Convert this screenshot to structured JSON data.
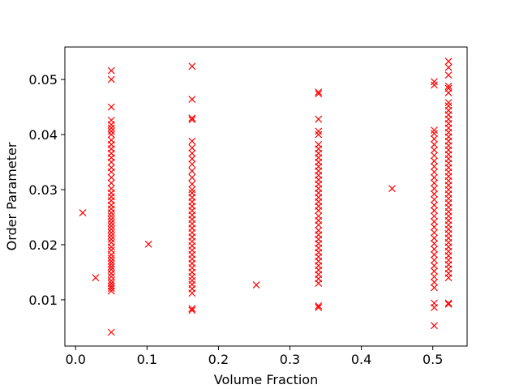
{
  "chart_data": {
    "type": "scatter",
    "title": "",
    "xlabel": "Volume Fraction",
    "ylabel": "Order Parameter",
    "xlim": [
      -0.015,
      0.548
    ],
    "ylim": [
      0.0016,
      0.0559
    ],
    "xticks": [
      0,
      0.1,
      0.2,
      0.3,
      0.4,
      0.5
    ],
    "xtick_labels": [
      "0.0",
      "0.1",
      "0.2",
      "0.3",
      "0.4",
      "0.5"
    ],
    "yticks": [
      0.01,
      0.02,
      0.03,
      0.04,
      0.05
    ],
    "ytick_labels": [
      "0.01",
      "0.02",
      "0.03",
      "0.04",
      "0.05"
    ],
    "grid": false,
    "legend": "none",
    "marker": "x",
    "color": "#ff0000",
    "series": [
      {
        "values": [
          [
            0.01,
            0.0258
          ],
          [
            0.028,
            0.014
          ],
          [
            0.102,
            0.0201
          ],
          [
            0.253,
            0.0127
          ],
          [
            0.443,
            0.0302
          ],
          [
            0.05,
            0.0041
          ],
          [
            0.05,
            0.0116
          ],
          [
            0.05,
            0.0121
          ],
          [
            0.05,
            0.0125
          ],
          [
            0.05,
            0.013
          ],
          [
            0.05,
            0.0135
          ],
          [
            0.05,
            0.0142
          ],
          [
            0.05,
            0.0148
          ],
          [
            0.05,
            0.0155
          ],
          [
            0.05,
            0.016
          ],
          [
            0.05,
            0.0165
          ],
          [
            0.05,
            0.017
          ],
          [
            0.05,
            0.0176
          ],
          [
            0.05,
            0.0182
          ],
          [
            0.05,
            0.019
          ],
          [
            0.05,
            0.0196
          ],
          [
            0.05,
            0.0204
          ],
          [
            0.05,
            0.021
          ],
          [
            0.05,
            0.0216
          ],
          [
            0.05,
            0.0222
          ],
          [
            0.05,
            0.0228
          ],
          [
            0.05,
            0.0234
          ],
          [
            0.05,
            0.024
          ],
          [
            0.05,
            0.0246
          ],
          [
            0.05,
            0.0252
          ],
          [
            0.05,
            0.0258
          ],
          [
            0.05,
            0.0265
          ],
          [
            0.05,
            0.0272
          ],
          [
            0.05,
            0.028
          ],
          [
            0.05,
            0.0287
          ],
          [
            0.05,
            0.0294
          ],
          [
            0.05,
            0.0302
          ],
          [
            0.05,
            0.0312
          ],
          [
            0.05,
            0.0322
          ],
          [
            0.05,
            0.0332
          ],
          [
            0.05,
            0.034
          ],
          [
            0.05,
            0.035
          ],
          [
            0.05,
            0.0358
          ],
          [
            0.05,
            0.0366
          ],
          [
            0.05,
            0.0374
          ],
          [
            0.05,
            0.0382
          ],
          [
            0.05,
            0.039
          ],
          [
            0.05,
            0.04
          ],
          [
            0.05,
            0.0406
          ],
          [
            0.05,
            0.0412
          ],
          [
            0.05,
            0.0418
          ],
          [
            0.05,
            0.0426
          ],
          [
            0.05,
            0.045
          ],
          [
            0.05,
            0.05
          ],
          [
            0.05,
            0.0516
          ],
          [
            0.163,
            0.0081
          ],
          [
            0.163,
            0.0084
          ],
          [
            0.163,
            0.0112
          ],
          [
            0.163,
            0.012
          ],
          [
            0.163,
            0.0128
          ],
          [
            0.163,
            0.0135
          ],
          [
            0.163,
            0.0142
          ],
          [
            0.163,
            0.015
          ],
          [
            0.163,
            0.0158
          ],
          [
            0.163,
            0.0166
          ],
          [
            0.163,
            0.0174
          ],
          [
            0.163,
            0.0182
          ],
          [
            0.163,
            0.019
          ],
          [
            0.163,
            0.0198
          ],
          [
            0.163,
            0.0206
          ],
          [
            0.163,
            0.0214
          ],
          [
            0.163,
            0.0222
          ],
          [
            0.163,
            0.023
          ],
          [
            0.163,
            0.0238
          ],
          [
            0.163,
            0.0246
          ],
          [
            0.163,
            0.0254
          ],
          [
            0.163,
            0.0262
          ],
          [
            0.163,
            0.027
          ],
          [
            0.163,
            0.0278
          ],
          [
            0.163,
            0.0286
          ],
          [
            0.163,
            0.0294
          ],
          [
            0.163,
            0.03
          ],
          [
            0.163,
            0.031
          ],
          [
            0.163,
            0.0322
          ],
          [
            0.163,
            0.0334
          ],
          [
            0.163,
            0.0346
          ],
          [
            0.163,
            0.0356
          ],
          [
            0.163,
            0.0366
          ],
          [
            0.163,
            0.0376
          ],
          [
            0.163,
            0.0388
          ],
          [
            0.163,
            0.0427
          ],
          [
            0.163,
            0.043
          ],
          [
            0.163,
            0.0464
          ],
          [
            0.163,
            0.0524
          ],
          [
            0.34,
            0.0086
          ],
          [
            0.34,
            0.0089
          ],
          [
            0.34,
            0.013
          ],
          [
            0.34,
            0.0138
          ],
          [
            0.34,
            0.0146
          ],
          [
            0.34,
            0.0154
          ],
          [
            0.34,
            0.0162
          ],
          [
            0.34,
            0.017
          ],
          [
            0.34,
            0.0178
          ],
          [
            0.34,
            0.0186
          ],
          [
            0.34,
            0.0194
          ],
          [
            0.34,
            0.0202
          ],
          [
            0.34,
            0.021
          ],
          [
            0.34,
            0.0218
          ],
          [
            0.34,
            0.0226
          ],
          [
            0.34,
            0.0236
          ],
          [
            0.34,
            0.0244
          ],
          [
            0.34,
            0.0252
          ],
          [
            0.34,
            0.0262
          ],
          [
            0.34,
            0.027
          ],
          [
            0.34,
            0.0278
          ],
          [
            0.34,
            0.0286
          ],
          [
            0.34,
            0.0294
          ],
          [
            0.34,
            0.0302
          ],
          [
            0.34,
            0.031
          ],
          [
            0.34,
            0.0318
          ],
          [
            0.34,
            0.0326
          ],
          [
            0.34,
            0.0334
          ],
          [
            0.34,
            0.0342
          ],
          [
            0.34,
            0.035
          ],
          [
            0.34,
            0.0358
          ],
          [
            0.34,
            0.0366
          ],
          [
            0.34,
            0.0374
          ],
          [
            0.34,
            0.0382
          ],
          [
            0.34,
            0.04
          ],
          [
            0.34,
            0.0406
          ],
          [
            0.34,
            0.0428
          ],
          [
            0.34,
            0.0474
          ],
          [
            0.34,
            0.0477
          ],
          [
            0.502,
            0.0053
          ],
          [
            0.502,
            0.0086
          ],
          [
            0.502,
            0.0094
          ],
          [
            0.502,
            0.0122
          ],
          [
            0.502,
            0.0132
          ],
          [
            0.502,
            0.0142
          ],
          [
            0.502,
            0.0152
          ],
          [
            0.502,
            0.0162
          ],
          [
            0.502,
            0.0172
          ],
          [
            0.502,
            0.0182
          ],
          [
            0.502,
            0.0192
          ],
          [
            0.502,
            0.0202
          ],
          [
            0.502,
            0.0212
          ],
          [
            0.502,
            0.0222
          ],
          [
            0.502,
            0.0232
          ],
          [
            0.502,
            0.0242
          ],
          [
            0.502,
            0.0252
          ],
          [
            0.502,
            0.0262
          ],
          [
            0.502,
            0.0272
          ],
          [
            0.502,
            0.0282
          ],
          [
            0.502,
            0.0292
          ],
          [
            0.502,
            0.0302
          ],
          [
            0.502,
            0.0312
          ],
          [
            0.502,
            0.0322
          ],
          [
            0.502,
            0.0332
          ],
          [
            0.502,
            0.0342
          ],
          [
            0.502,
            0.0352
          ],
          [
            0.502,
            0.0362
          ],
          [
            0.502,
            0.0372
          ],
          [
            0.502,
            0.0382
          ],
          [
            0.502,
            0.0392
          ],
          [
            0.502,
            0.0402
          ],
          [
            0.502,
            0.0408
          ],
          [
            0.502,
            0.049
          ],
          [
            0.502,
            0.0496
          ],
          [
            0.522,
            0.0092
          ],
          [
            0.522,
            0.0094
          ],
          [
            0.522,
            0.014
          ],
          [
            0.522,
            0.0148
          ],
          [
            0.522,
            0.0156
          ],
          [
            0.522,
            0.0164
          ],
          [
            0.522,
            0.0172
          ],
          [
            0.522,
            0.018
          ],
          [
            0.522,
            0.0188
          ],
          [
            0.522,
            0.0196
          ],
          [
            0.522,
            0.0204
          ],
          [
            0.522,
            0.0212
          ],
          [
            0.522,
            0.022
          ],
          [
            0.522,
            0.0228
          ],
          [
            0.522,
            0.0236
          ],
          [
            0.522,
            0.0244
          ],
          [
            0.522,
            0.0252
          ],
          [
            0.522,
            0.026
          ],
          [
            0.522,
            0.0268
          ],
          [
            0.522,
            0.0276
          ],
          [
            0.522,
            0.0284
          ],
          [
            0.522,
            0.0292
          ],
          [
            0.522,
            0.03
          ],
          [
            0.522,
            0.0308
          ],
          [
            0.522,
            0.0316
          ],
          [
            0.522,
            0.0324
          ],
          [
            0.522,
            0.0332
          ],
          [
            0.522,
            0.034
          ],
          [
            0.522,
            0.0348
          ],
          [
            0.522,
            0.0356
          ],
          [
            0.522,
            0.0364
          ],
          [
            0.522,
            0.0372
          ],
          [
            0.522,
            0.038
          ],
          [
            0.522,
            0.0388
          ],
          [
            0.522,
            0.0396
          ],
          [
            0.522,
            0.0404
          ],
          [
            0.522,
            0.0412
          ],
          [
            0.522,
            0.042
          ],
          [
            0.522,
            0.0428
          ],
          [
            0.522,
            0.0436
          ],
          [
            0.522,
            0.0444
          ],
          [
            0.522,
            0.0452
          ],
          [
            0.522,
            0.0458
          ],
          [
            0.522,
            0.0476
          ],
          [
            0.522,
            0.0484
          ],
          [
            0.522,
            0.0488
          ],
          [
            0.522,
            0.0508
          ],
          [
            0.522,
            0.0522
          ],
          [
            0.522,
            0.0533
          ]
        ]
      }
    ]
  }
}
